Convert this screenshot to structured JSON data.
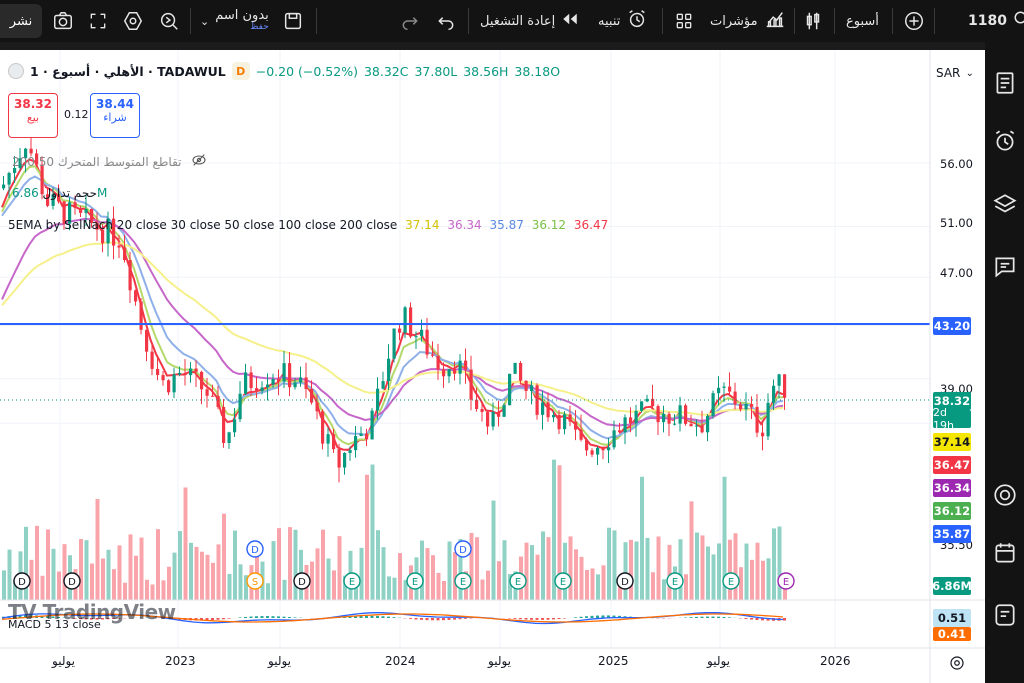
{
  "topbar": {
    "share": "نشر",
    "layout_name": "بدون اسم",
    "layout_sub": "حفظ",
    "replay": "إعادة التشغيل",
    "alert": "تنبيه",
    "indicators": "مؤشرات",
    "interval": "أسبوع",
    "symbol": "1180"
  },
  "legend": {
    "title": "الأهلي · أسبوع · 1 · TADAWUL",
    "badge": "D",
    "change": "−0.20 (−0.52%)",
    "close": "38.32C",
    "low": "37.80L",
    "high": "38.56H",
    "open": "38.18O",
    "currency": "SAR"
  },
  "trade": {
    "sell_price": "38.32",
    "sell_label": "بيع",
    "spread": "0.12",
    "buy_price": "38.44",
    "buy_label": "شراء"
  },
  "indicators": {
    "ma_cross": "تقاطع المتوسط المتحرك",
    "ma_cross_params": "50 200",
    "volume": "حجم تداول",
    "volume_value": "6.86M",
    "ema_label": "5EMA by SelNach 20 close 30 close 50 close 100 close 200 close",
    "ema_values": [
      "37.14",
      "36.34",
      "35.87",
      "36.12",
      "36.47"
    ],
    "macd_label": "MACD 5 13 close"
  },
  "price_axis": {
    "ticks": [
      "56.00",
      "51.00",
      "47.00",
      "39.00",
      "35.50"
    ],
    "h_line": "43.20",
    "last_price": "38.32",
    "countdown": "2d 19h",
    "tag_values": [
      "37.14",
      "36.47",
      "36.34",
      "36.12",
      "35.87"
    ],
    "volume_tag": "6.86M",
    "macd_tags": [
      "0.51",
      "0.41"
    ]
  },
  "time_axis": {
    "labels": [
      "يوليو",
      "2023",
      "يوليو",
      "2024",
      "يوليو",
      "2025",
      "يوليو",
      "2026"
    ]
  },
  "watermark": "TradingView",
  "colors": {
    "up": "#089981",
    "down": "#f23645",
    "h_line": "#2962ff",
    "ema20": "#f23645",
    "ema30": "#b5d96b",
    "ema50": "#8fb0e8",
    "ema100": "#c667c9",
    "ema200": "#f5f08a"
  }
}
